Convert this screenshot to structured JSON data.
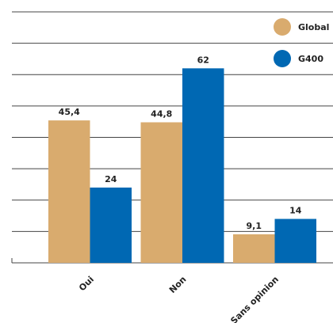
{
  "chart_data": {
    "type": "bar",
    "categories": [
      "Oui",
      "Non",
      "Sans opinion"
    ],
    "series": [
      {
        "name": "Global",
        "color": "#d9ab6e",
        "values": [
          45.4,
          44.8,
          9.1
        ],
        "value_labels": [
          "45,4",
          "44,8",
          "9,1"
        ]
      },
      {
        "name": "G400",
        "color": "#0068b3",
        "values": [
          24,
          62,
          14
        ]
      }
    ],
    "ylim": [
      0,
      80
    ],
    "yticks": [
      0,
      10,
      20,
      30,
      40,
      50,
      60,
      70,
      80
    ],
    "grid": true,
    "legend": "top right"
  }
}
